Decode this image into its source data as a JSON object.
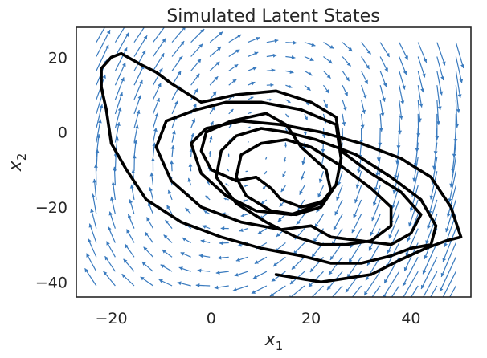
{
  "chart_data": {
    "type": "quiver+line",
    "title": "Simulated Latent States",
    "xlabel": {
      "base": "x",
      "sub": "1"
    },
    "ylabel": {
      "base": "x",
      "sub": "2"
    },
    "xlim": [
      -27,
      52
    ],
    "ylim": [
      -44,
      28
    ],
    "xticks": [
      {
        "value": -20,
        "label": "−20"
      },
      {
        "value": 0,
        "label": "0"
      },
      {
        "value": 20,
        "label": "20"
      },
      {
        "value": 40,
        "label": "40"
      }
    ],
    "yticks": [
      {
        "value": 20,
        "label": "20"
      },
      {
        "value": 0,
        "label": "0"
      },
      {
        "value": -20,
        "label": "−20"
      },
      {
        "value": -40,
        "label": "−40"
      }
    ],
    "grid": false,
    "vector_field": {
      "color": "#3a7bbf",
      "x_range": [
        -23,
        49
      ],
      "y_range": [
        -41,
        24
      ],
      "grid_points": [
        20,
        18
      ],
      "dynamics": {
        "fixed_point": [
          8,
          -5
        ],
        "matrix": [
          [
            -0.05,
            0.19
          ],
          [
            -0.34,
            0.07
          ]
        ]
      }
    },
    "trajectory": {
      "color": "#000000",
      "points": [
        [
          13,
          -38
        ],
        [
          22,
          -40
        ],
        [
          32,
          -38
        ],
        [
          38,
          -34
        ],
        [
          43,
          -31
        ],
        [
          47,
          -29
        ],
        [
          50,
          -28
        ],
        [
          48,
          -20
        ],
        [
          44,
          -12
        ],
        [
          38,
          -7
        ],
        [
          30,
          -3
        ],
        [
          22,
          0
        ],
        [
          14,
          2
        ],
        [
          6,
          3
        ],
        [
          -1,
          1
        ],
        [
          -4,
          -3
        ],
        [
          -2,
          -11
        ],
        [
          3,
          -17
        ],
        [
          9,
          -21
        ],
        [
          16,
          -22
        ],
        [
          22,
          -19
        ],
        [
          25,
          -14
        ],
        [
          26,
          -7
        ],
        [
          25,
          2
        ],
        [
          18,
          6
        ],
        [
          10,
          8
        ],
        [
          3,
          8
        ],
        [
          -3,
          6
        ],
        [
          -9,
          3
        ],
        [
          -11,
          -4
        ],
        [
          -8,
          -13
        ],
        [
          -2,
          -20
        ],
        [
          6,
          -24
        ],
        [
          14,
          -26
        ],
        [
          20,
          -25
        ],
        [
          24,
          -28
        ],
        [
          30,
          -29
        ],
        [
          36,
          -30
        ],
        [
          40,
          -27
        ],
        [
          42,
          -22
        ],
        [
          38,
          -16
        ],
        [
          32,
          -11
        ],
        [
          26,
          -5
        ],
        [
          25,
          4
        ],
        [
          20,
          8
        ],
        [
          13,
          11
        ],
        [
          5,
          10
        ],
        [
          -2,
          8
        ],
        [
          -8,
          13
        ],
        [
          -11,
          16
        ],
        [
          -14,
          18
        ],
        [
          -18,
          21
        ],
        [
          -20,
          20
        ],
        [
          -22,
          17
        ],
        [
          -22,
          12
        ],
        [
          -21,
          6
        ],
        [
          -20,
          -3
        ],
        [
          -17,
          -10
        ],
        [
          -13,
          -18
        ],
        [
          -6,
          -24
        ],
        [
          2,
          -28
        ],
        [
          10,
          -31
        ],
        [
          18,
          -33
        ],
        [
          24,
          -35
        ],
        [
          30,
          -35
        ],
        [
          36,
          -33
        ],
        [
          40,
          -31
        ],
        [
          44,
          -30
        ],
        [
          45,
          -25
        ],
        [
          42,
          -18
        ],
        [
          36,
          -12
        ],
        [
          29,
          -6
        ],
        [
          21,
          -2
        ],
        [
          15,
          0
        ],
        [
          10,
          1
        ],
        [
          5,
          -1
        ],
        [
          2,
          -5
        ],
        [
          1,
          -12
        ],
        [
          5,
          -19
        ],
        [
          11,
          -24
        ],
        [
          17,
          -28
        ],
        [
          22,
          -30
        ],
        [
          27,
          -30
        ],
        [
          32,
          -29
        ],
        [
          36,
          -25
        ],
        [
          36,
          -20
        ],
        [
          32,
          -15
        ],
        [
          26,
          -9
        ],
        [
          20,
          -4
        ],
        [
          15,
          -2
        ],
        [
          10,
          -3
        ],
        [
          6,
          -6
        ],
        [
          5,
          -12
        ],
        [
          7,
          -17
        ],
        [
          12,
          -21
        ],
        [
          17,
          -22
        ],
        [
          22,
          -20
        ],
        [
          24,
          -16
        ],
        [
          23,
          -10
        ],
        [
          18,
          -4
        ],
        [
          15,
          2
        ],
        [
          11,
          5
        ],
        [
          4,
          3
        ],
        [
          -1,
          0
        ],
        [
          -2,
          -5
        ],
        [
          0,
          -10
        ],
        [
          5,
          -13
        ],
        [
          9,
          -12
        ],
        [
          12,
          -15
        ],
        [
          14,
          -18
        ],
        [
          18,
          -20
        ],
        [
          21,
          -19
        ],
        [
          23,
          -18
        ],
        [
          25,
          -14
        ]
      ]
    }
  }
}
